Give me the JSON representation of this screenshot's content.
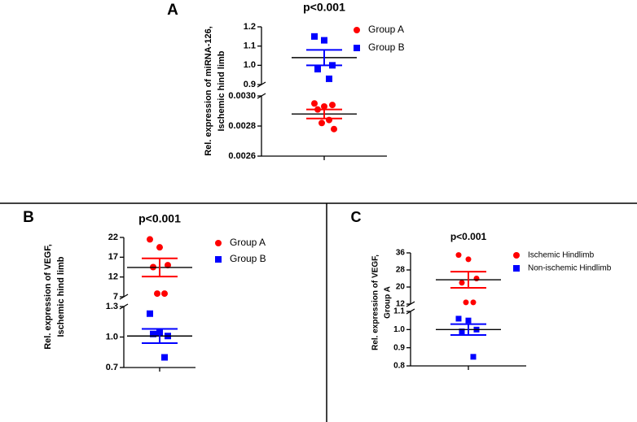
{
  "chart_data": [
    {
      "type": "scatter",
      "panel": "A",
      "title": "p<0.001",
      "ylabel": [
        "Rel. expression of miRNA-126,",
        "Ischemic hind limb"
      ],
      "segments": [
        {
          "ylim": [
            0.9,
            1.2
          ],
          "yticks": [
            0.9,
            {
              "value": 1.0,
              "label": "1.0"
            },
            1.1,
            1.2
          ]
        },
        {
          "ylim": [
            0.0026,
            0.003
          ],
          "yticks": [
            0.0026,
            0.0028,
            {
              "value": 0.003,
              "label": "0.0030"
            }
          ]
        }
      ],
      "series": [
        {
          "name": "Group A",
          "color": "#ff0000",
          "marker": "circle",
          "values": [
            0.00295,
            0.00293,
            0.00294,
            0.00291,
            0.00284,
            0.00282,
            0.00278
          ],
          "mean": 0.00288,
          "sem": 3e-05
        },
        {
          "name": "Group B",
          "color": "#0000ff",
          "marker": "square",
          "values": [
            1.15,
            1.13,
            1.0,
            0.98,
            0.93
          ],
          "mean": 1.04,
          "sem": 0.04
        }
      ]
    },
    {
      "type": "scatter",
      "panel": "B",
      "title": "p<0.001",
      "ylabel": [
        "Rel. expression of VEGF,",
        "Ischemic hind limb"
      ],
      "segments": [
        {
          "ylim": [
            7,
            22
          ],
          "yticks": [
            7,
            12,
            17,
            22
          ]
        },
        {
          "ylim": [
            0.7,
            1.3
          ],
          "yticks": [
            0.7,
            {
              "value": 1.0,
              "label": "1.0"
            },
            1.3
          ]
        }
      ],
      "series": [
        {
          "name": "Group A",
          "color": "#ff0000",
          "marker": "circle",
          "values": [
            21.5,
            19.5,
            15,
            14.5,
            7.8,
            7.8
          ],
          "mean": 14.4,
          "sem": 2.3
        },
        {
          "name": "Group B",
          "color": "#0000ff",
          "marker": "square",
          "values": [
            1.23,
            1.04,
            1.01,
            1.03,
            0.8
          ],
          "mean": 1.01,
          "sem": 0.07
        }
      ]
    },
    {
      "type": "scatter",
      "panel": "C",
      "title": "p<0.001",
      "ylabel": [
        "Rel. expression of VEGF,",
        "Group A"
      ],
      "segments": [
        {
          "ylim": [
            12,
            36
          ],
          "yticks": [
            12,
            20,
            28,
            36
          ]
        },
        {
          "ylim": [
            0.8,
            1.1
          ],
          "yticks": [
            0.8,
            0.9,
            {
              "value": 1.0,
              "label": "1.0"
            },
            1.1
          ]
        }
      ],
      "series": [
        {
          "name": "Ischemic Hindlimb",
          "color": "#ff0000",
          "marker": "circle",
          "values": [
            35,
            33,
            24,
            22,
            12.8,
            12.8
          ],
          "mean": 23.4,
          "sem": 3.8
        },
        {
          "name": "Non-ischemic Hindlimb",
          "color": "#0000ff",
          "marker": "square",
          "values": [
            1.06,
            1.05,
            1.0,
            0.99,
            0.85
          ],
          "mean": 1.0,
          "sem": 0.03
        }
      ]
    }
  ]
}
